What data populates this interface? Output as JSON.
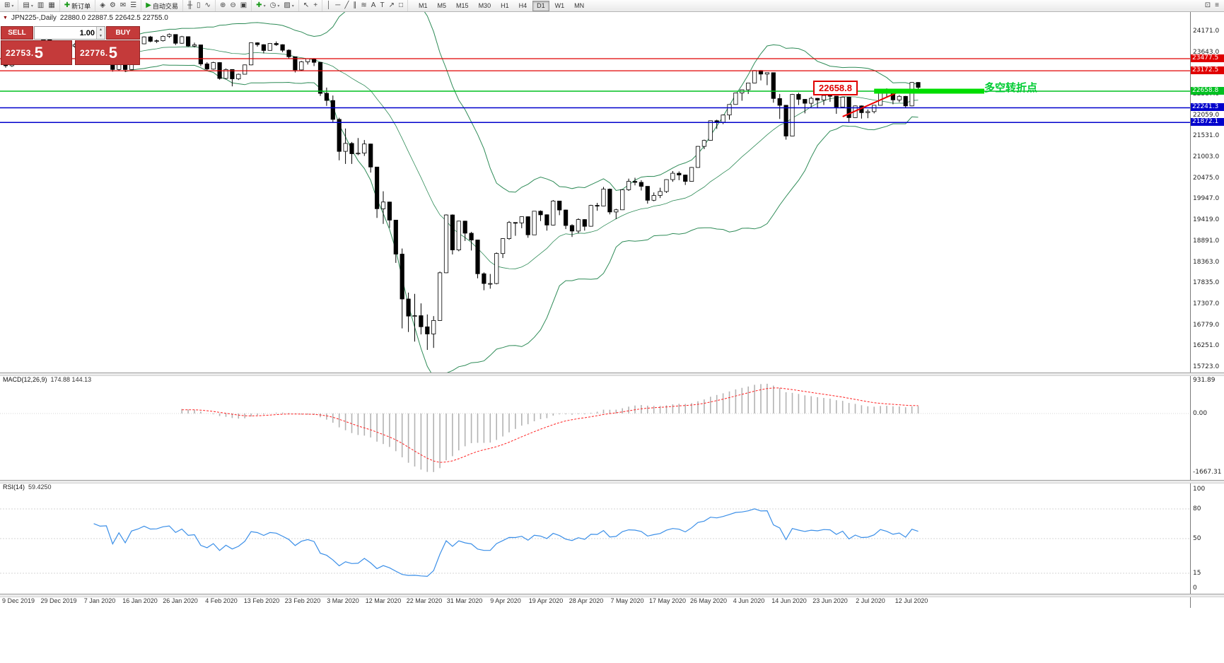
{
  "toolbar": {
    "groups": [
      {
        "items": [
          {
            "name": "new-chart-icon",
            "glyph": "⊞",
            "caret": true
          }
        ]
      },
      {
        "items": [
          {
            "name": "profiles-icon",
            "glyph": "▤",
            "caret": true
          },
          {
            "name": "market-watch-icon",
            "glyph": "▥"
          },
          {
            "name": "navigator-icon",
            "glyph": "▦"
          }
        ]
      },
      {
        "items": [
          {
            "name": "new-order-icon",
            "glyph": "✚",
            "color": "#1a9a1a",
            "label": "新订单"
          }
        ]
      },
      {
        "items": [
          {
            "name": "metaeditor-icon",
            "glyph": "◈"
          },
          {
            "name": "options-icon",
            "glyph": "⚙"
          },
          {
            "name": "mailbox-icon",
            "glyph": "✉"
          },
          {
            "name": "news-icon",
            "glyph": "☰"
          }
        ]
      },
      {
        "items": [
          {
            "name": "autotrading-icon",
            "glyph": "▶",
            "color": "#1a9a1a",
            "label": "自动交易"
          }
        ]
      },
      {
        "items": [
          {
            "name": "bar-chart-icon",
            "glyph": "╫"
          },
          {
            "name": "candlestick-chart-icon",
            "glyph": "▯"
          },
          {
            "name": "line-chart-icon",
            "glyph": "∿"
          }
        ]
      },
      {
        "items": [
          {
            "name": "zoom-in-icon",
            "glyph": "⊕"
          },
          {
            "name": "zoom-out-icon",
            "glyph": "⊖"
          },
          {
            "name": "tile-windows-icon",
            "glyph": "▣"
          }
        ]
      },
      {
        "items": [
          {
            "name": "indicators-icon",
            "glyph": "✚",
            "color": "#1a9a1a",
            "caret": true
          },
          {
            "name": "periods-icon",
            "glyph": "◷",
            "caret": true
          },
          {
            "name": "templates-icon",
            "glyph": "▨",
            "caret": true
          }
        ]
      },
      {
        "items": [
          {
            "name": "cursor-icon",
            "glyph": "↖"
          },
          {
            "name": "crosshair-icon",
            "glyph": "+"
          }
        ]
      },
      {
        "items": [
          {
            "name": "vertical-line-icon",
            "glyph": "│"
          },
          {
            "name": "horizontal-line-icon",
            "glyph": "─"
          },
          {
            "name": "trendline-icon",
            "glyph": "╱"
          },
          {
            "name": "channel-icon",
            "glyph": "∥"
          },
          {
            "name": "fibonacci-icon",
            "glyph": "≋"
          },
          {
            "name": "text-icon",
            "glyph": "A"
          },
          {
            "name": "label-icon",
            "glyph": "T"
          },
          {
            "name": "arrow-icon",
            "glyph": "↗"
          },
          {
            "name": "shapes-icon",
            "glyph": "□"
          }
        ]
      }
    ],
    "timeframes": [
      "M1",
      "M5",
      "M15",
      "M30",
      "H1",
      "H4",
      "D1",
      "W1",
      "MN"
    ],
    "active_timeframe": "D1",
    "right_items": [
      {
        "name": "window-list-icon",
        "glyph": "⊡"
      },
      {
        "name": "help-icon",
        "glyph": "≡"
      }
    ]
  },
  "chart_title": {
    "symbol": "JPN225-,Daily",
    "ohlc": "22880.0 22887.5 22642.5 22755.0"
  },
  "one_click": {
    "sell_label": "SELL",
    "buy_label": "BUY",
    "volume": "1.00",
    "sell_price_small": "22753.",
    "sell_price_big": "5",
    "buy_price_small": "22776.",
    "buy_price_big": "5"
  },
  "chart_data": {
    "type": "candlestick",
    "symbol": "JPN225-,Daily",
    "title_ohlc": {
      "open": "22880.0",
      "high": "22887.5",
      "low": "22642.5",
      "close": "22755.0"
    },
    "x_labels": [
      "9 Dec 2019",
      "29 Dec 2019",
      "7 Jan 2020",
      "16 Jan 2020",
      "26 Jan 2020",
      "4 Feb 2020",
      "13 Feb 2020",
      "23 Feb 2020",
      "3 Mar 2020",
      "12 Mar 2020",
      "22 Mar 2020",
      "31 Mar 2020",
      "9 Apr 2020",
      "19 Apr 2020",
      "28 Apr 2020",
      "7 May 2020",
      "17 May 2020",
      "26 May 2020",
      "4 Jun 2020",
      "14 Jun 2020",
      "23 Jun 2020",
      "2 Jul 2020",
      "12 Jul 2020"
    ],
    "y_ticks": [
      "24171.0",
      "23643.0",
      "23115.0",
      "22587.0",
      "22059.0",
      "21531.0",
      "21003.0",
      "20475.0",
      "19947.0",
      "19419.0",
      "18891.0",
      "18363.0",
      "17835.0",
      "17307.0",
      "16779.0",
      "16251.0",
      "15723.0"
    ],
    "ylim": [
      15723,
      24171
    ],
    "candles": [
      [
        23330,
        23390,
        23250,
        23300
      ],
      [
        23300,
        23480,
        23270,
        23430
      ],
      [
        23430,
        23460,
        23330,
        23390
      ],
      [
        23390,
        23450,
        23340,
        23410
      ],
      [
        23410,
        23560,
        23380,
        23520
      ],
      [
        23520,
        23550,
        23340,
        23390
      ],
      [
        23390,
        23980,
        23380,
        23950
      ],
      [
        23950,
        24050,
        23830,
        23860
      ],
      [
        23860,
        23900,
        23790,
        23830
      ],
      [
        23830,
        23870,
        23760,
        23810
      ],
      [
        23810,
        23850,
        23720,
        23790
      ],
      [
        23790,
        23870,
        23750,
        23830
      ],
      [
        23830,
        23860,
        23770,
        23820
      ],
      [
        23820,
        23850,
        23740,
        23780
      ],
      [
        23780,
        23810,
        23680,
        23700
      ],
      [
        23700,
        23760,
        23630,
        23650
      ],
      [
        23650,
        23740,
        23610,
        23660
      ],
      [
        23660,
        23670,
        23150,
        23205
      ],
      [
        23205,
        23590,
        23180,
        23575
      ],
      [
        23575,
        23580,
        23140,
        23204
      ],
      [
        23204,
        23760,
        23200,
        23740
      ],
      [
        23740,
        23900,
        23730,
        23850
      ],
      [
        23850,
        24040,
        23840,
        24025
      ],
      [
        24025,
        24050,
        23890,
        23915
      ],
      [
        23915,
        23960,
        23870,
        23930
      ],
      [
        23930,
        24060,
        23910,
        24040
      ],
      [
        24040,
        24110,
        24000,
        24085
      ],
      [
        24085,
        24090,
        23820,
        23865
      ],
      [
        23865,
        24050,
        23850,
        24030
      ],
      [
        24030,
        24040,
        23770,
        23795
      ],
      [
        23795,
        23880,
        23760,
        23825
      ],
      [
        23825,
        23830,
        23290,
        23345
      ],
      [
        23345,
        23390,
        23170,
        23215
      ],
      [
        23215,
        23400,
        23200,
        23380
      ],
      [
        23380,
        23390,
        22950,
        22980
      ],
      [
        22980,
        23230,
        22960,
        23205
      ],
      [
        23205,
        23210,
        22780,
        22970
      ],
      [
        22970,
        23100,
        22940,
        23085
      ],
      [
        23085,
        23330,
        23080,
        23320
      ],
      [
        23320,
        23880,
        23310,
        23875
      ],
      [
        23875,
        23890,
        23780,
        23830
      ],
      [
        23830,
        23840,
        23610,
        23685
      ],
      [
        23685,
        23870,
        23680,
        23860
      ],
      [
        23860,
        23910,
        23800,
        23830
      ],
      [
        23830,
        23840,
        23640,
        23690
      ],
      [
        23690,
        23710,
        23470,
        23525
      ],
      [
        23525,
        23530,
        23130,
        23195
      ],
      [
        23195,
        23420,
        23180,
        23400
      ],
      [
        23400,
        23490,
        23330,
        23480
      ],
      [
        23480,
        23490,
        23290,
        23385
      ],
      [
        23385,
        23390,
        22540,
        22605
      ],
      [
        22605,
        22750,
        22290,
        22425
      ],
      [
        22425,
        22550,
        21870,
        21950
      ],
      [
        21950,
        21990,
        20920,
        21145
      ],
      [
        21145,
        21720,
        20830,
        21345
      ],
      [
        21345,
        21380,
        20830,
        21085
      ],
      [
        21085,
        21480,
        21050,
        21100
      ],
      [
        21100,
        21430,
        21030,
        21330
      ],
      [
        21330,
        21340,
        20610,
        20750
      ],
      [
        20750,
        20750,
        19470,
        19700
      ],
      [
        19700,
        20140,
        19320,
        19870
      ],
      [
        19870,
        19880,
        19220,
        19415
      ],
      [
        19415,
        19420,
        18340,
        18560
      ],
      [
        18560,
        18700,
        16690,
        17430
      ],
      [
        17430,
        17590,
        16600,
        17000
      ],
      [
        17000,
        17560,
        16360,
        17010
      ],
      [
        17010,
        17320,
        16540,
        16730
      ],
      [
        16730,
        17040,
        16150,
        16550
      ],
      [
        16550,
        17000,
        16200,
        16890
      ],
      [
        16890,
        18120,
        16880,
        18090
      ],
      [
        18090,
        19560,
        18080,
        19545
      ],
      [
        19545,
        19560,
        18550,
        18665
      ],
      [
        18665,
        19400,
        18630,
        19390
      ],
      [
        19390,
        19400,
        18890,
        19085
      ],
      [
        19085,
        19120,
        18650,
        18915
      ],
      [
        18915,
        18920,
        17950,
        18065
      ],
      [
        18065,
        18100,
        17650,
        17820
      ],
      [
        17820,
        18060,
        17690,
        17820
      ],
      [
        17820,
        18600,
        17800,
        18575
      ],
      [
        18575,
        18960,
        18460,
        18950
      ],
      [
        18950,
        19390,
        18920,
        19355
      ],
      [
        19355,
        19360,
        19020,
        19345
      ],
      [
        19345,
        19500,
        19210,
        19500
      ],
      [
        19500,
        19510,
        18970,
        19045
      ],
      [
        19045,
        19640,
        19040,
        19640
      ],
      [
        19640,
        19660,
        19390,
        19550
      ],
      [
        19550,
        19560,
        19150,
        19290
      ],
      [
        19290,
        19920,
        19280,
        19895
      ],
      [
        19895,
        19900,
        19540,
        19670
      ],
      [
        19670,
        19680,
        19190,
        19280
      ],
      [
        19280,
        19310,
        18990,
        19140
      ],
      [
        19140,
        19460,
        19080,
        19430
      ],
      [
        19430,
        19440,
        19150,
        19260
      ],
      [
        19260,
        19800,
        19250,
        19785
      ],
      [
        19785,
        19850,
        19650,
        19770
      ],
      [
        19770,
        20250,
        19760,
        20195
      ],
      [
        20195,
        20210,
        19560,
        19620
      ],
      [
        19620,
        19700,
        19440,
        19675
      ],
      [
        19675,
        20190,
        19670,
        20180
      ],
      [
        20180,
        20460,
        20150,
        20390
      ],
      [
        20390,
        20480,
        20290,
        20365
      ],
      [
        20365,
        20420,
        20160,
        20265
      ],
      [
        20265,
        20270,
        19830,
        19915
      ],
      [
        19915,
        20110,
        19890,
        20035
      ],
      [
        20035,
        20230,
        19970,
        20135
      ],
      [
        20135,
        20440,
        20100,
        20435
      ],
      [
        20435,
        20650,
        20380,
        20595
      ],
      [
        20595,
        20640,
        20420,
        20550
      ],
      [
        20550,
        20560,
        20300,
        20390
      ],
      [
        20390,
        20750,
        20380,
        20740
      ],
      [
        20740,
        21280,
        20730,
        21270
      ],
      [
        21270,
        21440,
        21200,
        21420
      ],
      [
        21420,
        21920,
        21410,
        21915
      ],
      [
        21915,
        21940,
        21710,
        21880
      ],
      [
        21880,
        22070,
        21830,
        22060
      ],
      [
        22060,
        22330,
        21940,
        22325
      ],
      [
        22325,
        22620,
        22320,
        22615
      ],
      [
        22615,
        22700,
        22420,
        22695
      ],
      [
        22695,
        22870,
        22590,
        22865
      ],
      [
        22865,
        23185,
        22860,
        23180
      ],
      [
        23180,
        23190,
        22930,
        23090
      ],
      [
        23090,
        23130,
        22810,
        23125
      ],
      [
        23125,
        23130,
        22370,
        22475
      ],
      [
        22475,
        22590,
        21960,
        22305
      ],
      [
        22305,
        22310,
        21440,
        21530
      ],
      [
        21530,
        22590,
        21525,
        22580
      ],
      [
        22580,
        22620,
        22310,
        22455
      ],
      [
        22455,
        22460,
        22100,
        22355
      ],
      [
        22355,
        22520,
        22260,
        22480
      ],
      [
        22480,
        22490,
        22230,
        22435
      ],
      [
        22435,
        22560,
        22310,
        22550
      ],
      [
        22550,
        22600,
        22390,
        22535
      ],
      [
        22535,
        22540,
        22090,
        22260
      ],
      [
        22260,
        22520,
        22250,
        22510
      ],
      [
        22510,
        22515,
        21890,
        21995
      ],
      [
        21995,
        22300,
        21990,
        22290
      ],
      [
        22290,
        22300,
        21970,
        22120
      ],
      [
        22120,
        22200,
        21980,
        22145
      ],
      [
        22145,
        22310,
        22100,
        22305
      ],
      [
        22305,
        22720,
        22300,
        22715
      ],
      [
        22715,
        22730,
        22510,
        22615
      ],
      [
        22615,
        22620,
        22330,
        22440
      ],
      [
        22440,
        22560,
        22380,
        22530
      ],
      [
        22530,
        22540,
        22250,
        22290
      ],
      [
        22290,
        22885,
        22280,
        22880
      ],
      [
        22880,
        22887.5,
        22642.5,
        22755
      ]
    ],
    "bollinger": {
      "period": 20,
      "deviation": 2,
      "color": "#2e8b57"
    },
    "hlines": [
      {
        "price": 23477.5,
        "label": "23477.5",
        "color": "#e00000",
        "width": 1.2
      },
      {
        "price": 23172.5,
        "label": "23172.5",
        "color": "#e00000",
        "width": 1.2
      },
      {
        "price": 22658.8,
        "label": "22658.8",
        "color": "#00c020",
        "width": 1.4
      },
      {
        "price": 22241.3,
        "label": "22241.3",
        "color": "#0000cc",
        "width": 1.5
      },
      {
        "price": 21872.1,
        "label": "21872.1",
        "color": "#0000cc",
        "width": 1.5
      }
    ],
    "trendline": {
      "ci1": 133,
      "p1": 22020,
      "ci2": 142.5,
      "p2": 22685,
      "color": "#ee0000"
    },
    "thick_segment": {
      "ci1": 138,
      "ci2": 155.5,
      "price": 22658.8,
      "color": "#00dd00"
    },
    "price_callout": "22658.8",
    "annotation": "多空转折点",
    "macd": {
      "name": "MACD(12,26,9)",
      "values": "174.88 144.13",
      "fast": 12,
      "slow": 26,
      "signal": 9,
      "axis": [
        "931.89",
        "0.00",
        "-1667.31"
      ]
    },
    "rsi": {
      "name": "RSI(14)",
      "value": "59.4250",
      "period": 14,
      "levels": [
        80,
        50,
        15
      ],
      "axis": [
        "100",
        "80",
        "50",
        "15",
        "0"
      ]
    }
  }
}
